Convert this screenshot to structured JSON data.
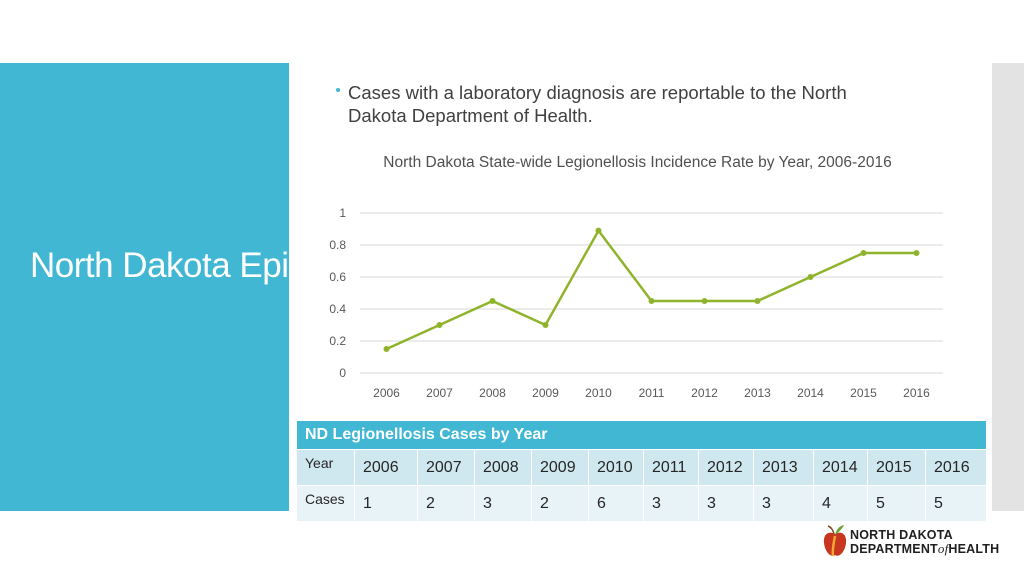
{
  "slide": {
    "title": "North Dakota Epidemiology",
    "bullet": "Cases with a laboratory diagnosis are reportable to the North Dakota Department of Health."
  },
  "chart_data": {
    "type": "line",
    "title": "North Dakota State-wide Legionellosis Incidence Rate by Year, 2006-2016",
    "xlabel": "",
    "ylabel": "",
    "x": [
      "2006",
      "2007",
      "2008",
      "2009",
      "2010",
      "2011",
      "2012",
      "2013",
      "2014",
      "2015",
      "2016"
    ],
    "y": [
      0.15,
      0.3,
      0.45,
      0.3,
      0.89,
      0.45,
      0.45,
      0.45,
      0.6,
      0.75,
      0.75
    ],
    "ylim": [
      0,
      1
    ],
    "yticks": [
      "0",
      "0.2",
      "0.4",
      "0.6",
      "0.8",
      "1"
    ],
    "grid": true,
    "legend": "none",
    "line_color": "#8fb42b"
  },
  "table": {
    "title": "ND Legionellosis Cases by Year",
    "row_labels": [
      "Year",
      "Cases"
    ],
    "years": [
      "2006",
      "2007",
      "2008",
      "2009",
      "2010",
      "2011",
      "2012",
      "2013",
      "2014",
      "2015",
      "2016"
    ],
    "cases": [
      "1",
      "2",
      "3",
      "2",
      "6",
      "3",
      "3",
      "3",
      "4",
      "5",
      "5"
    ]
  },
  "logo": {
    "line1": "NORTH DAKOTA",
    "line2a": "DEPARTMENT",
    "line2b": "of",
    "line2c": "HEALTH"
  },
  "colors": {
    "accent": "#41b7d4",
    "line": "#8fb42b"
  }
}
